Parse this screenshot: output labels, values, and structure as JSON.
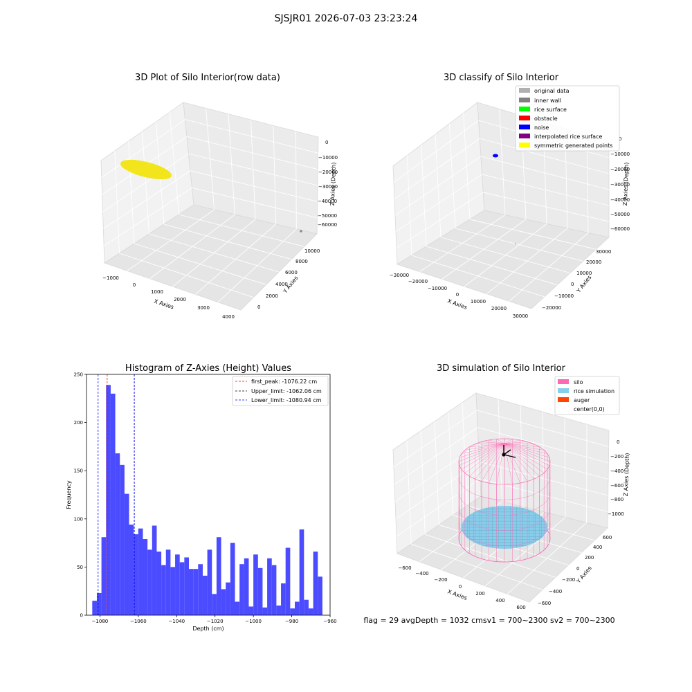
{
  "figure": {
    "suptitle": "SJSJR01 2026-07-03 23:23:24",
    "footer": "flag = 29  avgDepth = 1032 cmsv1 = 700~2300  sv2 = 700~2300"
  },
  "chart_data": [
    {
      "type": "scatter3d",
      "title": "3D Plot of Silo Interior(row data)",
      "xlabel": "X Axies",
      "ylabel": "Y Axies",
      "zlabel": "Z Axies (Depth)",
      "xticks": [
        "−1000",
        "0",
        "1000",
        "2000",
        "3000",
        "4000"
      ],
      "yticks": [
        "0",
        "2000",
        "4000",
        "6000",
        "8000",
        "10000"
      ],
      "zticks": [
        "0",
        "−10000",
        "−20000",
        "−30000",
        "−40000",
        "−50000",
        "−60000"
      ],
      "colors": {
        "points": "#f3e51b",
        "outlier": "#888888"
      }
    },
    {
      "type": "scatter3d",
      "title": "3D classify of Silo Interior",
      "xlabel": "X Axies",
      "ylabel": "Y Axies",
      "zlabel": "Z Axies (Depth)",
      "xticks": [
        "−30000",
        "−20000",
        "−10000",
        "0",
        "10000",
        "20000",
        "30000"
      ],
      "yticks": [
        "−20000",
        "−10000",
        "0",
        "10000",
        "20000",
        "30000"
      ],
      "zticks": [
        "0",
        "−10000",
        "−20000",
        "−30000",
        "−40000",
        "−50000",
        "−60000"
      ],
      "legend": [
        {
          "label": "original data",
          "color": "#b0b0b0"
        },
        {
          "label": "inner wall",
          "color": "#808080"
        },
        {
          "label": "rice surface",
          "color": "#00ff00"
        },
        {
          "label": "obstacle",
          "color": "#ff0000"
        },
        {
          "label": "noise",
          "color": "#0000ff"
        },
        {
          "label": "interpolated rice surface",
          "color": "#800080"
        },
        {
          "label": "symmetric generated points",
          "color": "#ffff00"
        }
      ]
    },
    {
      "type": "bar",
      "title": "Histogram of Z-Axies (Height) Values",
      "xlabel": "Depth (cm)",
      "ylabel": "Frequency",
      "xlim": [
        -1087,
        -960
      ],
      "ylim": [
        0,
        250
      ],
      "xticks": [
        -1080,
        -1060,
        -1040,
        -1020,
        -1000,
        -980,
        -960
      ],
      "xtick_labels": [
        "−1080",
        "−1060",
        "−1040",
        "−1020",
        "−1000",
        "−980",
        "−960"
      ],
      "yticks": [
        0,
        50,
        100,
        150,
        200,
        250
      ],
      "bin_start": -1084,
      "bin_width": 2.4,
      "values": [
        15,
        23,
        81,
        239,
        230,
        168,
        156,
        126,
        94,
        84,
        90,
        79,
        68,
        93,
        66,
        52,
        68,
        50,
        63,
        55,
        60,
        48,
        48,
        53,
        41,
        68,
        22,
        81,
        27,
        34,
        75,
        14,
        53,
        59,
        9,
        63,
        49,
        8,
        59,
        52,
        10,
        33,
        70,
        7,
        14,
        89,
        16,
        7,
        66,
        40
      ],
      "bar_color": "#4b4bff",
      "vlines": [
        {
          "x": -1076.22,
          "color": "#ff0000",
          "label": "first_peak: -1076.22 cm"
        },
        {
          "x": -1062.06,
          "color": "#000000",
          "label": "Upper_limit: -1062.06 cm"
        },
        {
          "x": -1080.94,
          "color": "#0000ff",
          "label": "Lower_limit: -1080.94 cm"
        }
      ],
      "extra_lines": [
        {
          "x": -1062.06,
          "color": "#0000ff"
        }
      ],
      "legend_position": "upper right"
    },
    {
      "type": "surface3d",
      "title": "3D simulation of Silo Interior",
      "xlabel": "X Axies",
      "ylabel": "Y Axies",
      "zlabel": "Z Axies (Depth)",
      "xticks": [
        "−600",
        "−400",
        "−200",
        "0",
        "200",
        "400",
        "600"
      ],
      "yticks": [
        "−600",
        "−400",
        "−200",
        "0",
        "200",
        "400",
        "600"
      ],
      "zticks": [
        "0",
        "−200",
        "−400",
        "−600",
        "−800",
        "−1000"
      ],
      "legend": [
        {
          "label": "silo",
          "color": "#ff69b4"
        },
        {
          "label": "rice simulation",
          "color": "#87ceeb"
        },
        {
          "label": "auger",
          "color": "#ff4500"
        },
        {
          "label": "center(0,0)",
          "color": ""
        }
      ]
    }
  ]
}
